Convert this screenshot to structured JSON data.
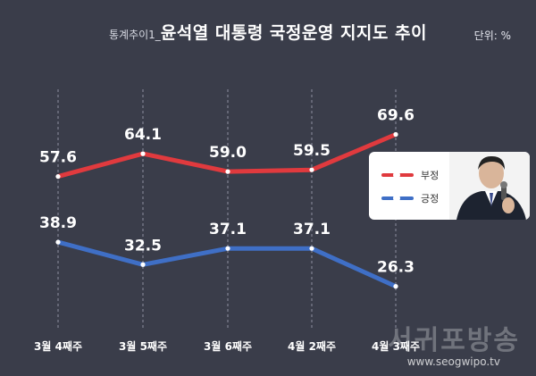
{
  "title": {
    "prefix": "통계추이1_",
    "main": "윤석열 대통령 국정운영 지지도 추이"
  },
  "unit_label": "단위: %",
  "colors": {
    "background": "#3a3d4a",
    "negative": "#e03a3e",
    "positive": "#3f6fc6"
  },
  "legend": {
    "negative_label": "부정",
    "positive_label": "긍정"
  },
  "watermark": {
    "brand": "서귀포방송",
    "url": "www.seogwipo.tv"
  },
  "chart_data": {
    "type": "line",
    "title": "윤석열 대통령 국정운영 지지도 추이",
    "categories": [
      "3월 4째주",
      "3월 5째주",
      "3월 6째주",
      "4월 2째주",
      "4월 3째주"
    ],
    "series": [
      {
        "name": "부정",
        "values": [
          57.6,
          64.1,
          59.0,
          59.5,
          69.6
        ],
        "labels": [
          "57.6",
          "64.1",
          "59.0",
          "59.5",
          "69.6"
        ]
      },
      {
        "name": "긍정",
        "values": [
          38.9,
          32.5,
          37.1,
          37.1,
          26.3
        ],
        "labels": [
          "38.9",
          "32.5",
          "37.1",
          "37.1",
          "26.3"
        ]
      }
    ],
    "ylim": [
      15,
      85
    ],
    "grid": "vertical-dashed",
    "legend_position": "right"
  }
}
